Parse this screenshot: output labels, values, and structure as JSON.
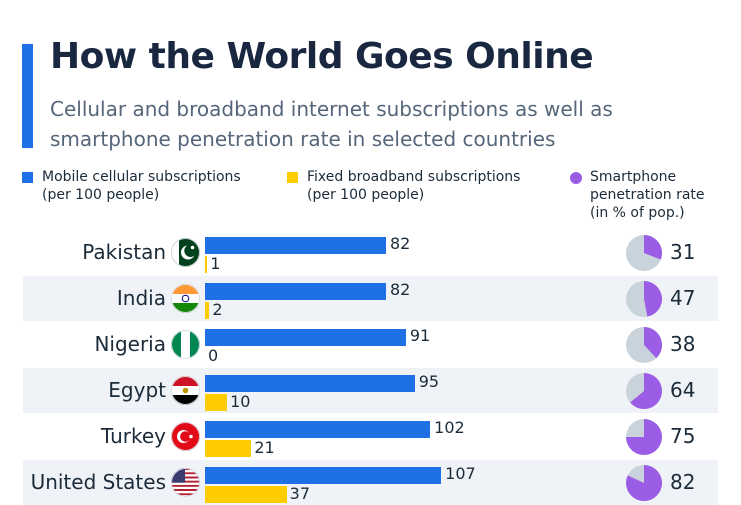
{
  "header": {
    "title": "How the World Goes Online",
    "subtitle": "Cellular and broadband internet subscriptions as well as smartphone penetration rate in selected countries"
  },
  "legend": {
    "mobile": "Mobile cellular subscriptions\n(per 100 people)",
    "fixed": "Fixed broadband subscriptions\n(per 100 people)",
    "smartphone": "Smartphone\npenetration rate\n(in % of pop.)"
  },
  "colors": {
    "mobile": "#1f6fe5",
    "fixed": "#ffcc00",
    "smartphone": "#9b5de5",
    "pie_rest": "#c9d3dc"
  },
  "chart_data": {
    "type": "bar",
    "categories": [
      "Pakistan",
      "India",
      "Nigeria",
      "Egypt",
      "Turkey",
      "United States"
    ],
    "series": [
      {
        "name": "Mobile cellular subscriptions (per 100 people)",
        "values": [
          82,
          82,
          91,
          95,
          102,
          107
        ]
      },
      {
        "name": "Fixed broadband subscriptions (per 100 people)",
        "values": [
          1,
          2,
          0,
          10,
          21,
          37
        ]
      },
      {
        "name": "Smartphone penetration rate (in % of pop.)",
        "values": [
          31,
          47,
          38,
          64,
          75,
          82
        ]
      }
    ],
    "value_labels": {
      "mobile": [
        "82",
        "82",
        "91",
        "95",
        "102",
        "107"
      ],
      "fixed": [
        "1",
        "2",
        "0",
        "10",
        "21",
        "37"
      ],
      "smartphone": [
        "31",
        "47",
        "38",
        "64",
        "75",
        "82"
      ]
    },
    "flag_icons": [
      "pakistan-flag-icon",
      "india-flag-icon",
      "nigeria-flag-icon",
      "egypt-flag-icon",
      "turkey-flag-icon",
      "united-states-flag-icon"
    ]
  }
}
